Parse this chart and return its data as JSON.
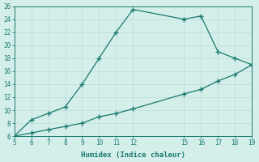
{
  "xlabel": "Humidex (Indice chaleur)",
  "upper_x": [
    5,
    6,
    7,
    8,
    9,
    10,
    11,
    12,
    15,
    16,
    17,
    18,
    19
  ],
  "upper_y": [
    6.0,
    8.5,
    9.5,
    10.5,
    14.0,
    18.0,
    22.0,
    25.5,
    24.0,
    24.5,
    19.0,
    18.0,
    17.0
  ],
  "lower_x": [
    5,
    6,
    7,
    8,
    9,
    10,
    11,
    12,
    15,
    16,
    17,
    18,
    19
  ],
  "lower_y": [
    6.0,
    6.5,
    7.0,
    7.5,
    8.0,
    9.0,
    9.5,
    10.2,
    12.5,
    13.2,
    14.5,
    15.5,
    17.0
  ],
  "line_color": "#1a7a6e",
  "marker": "+",
  "marker_size": 4,
  "bg_color": "#d4eeea",
  "grid_color": "#b8ddd8",
  "xlim": [
    5,
    19
  ],
  "ylim": [
    6,
    26
  ],
  "xticks": [
    5,
    6,
    7,
    8,
    9,
    10,
    11,
    12,
    15,
    16,
    17,
    18,
    19
  ],
  "yticks": [
    6,
    8,
    10,
    12,
    14,
    16,
    18,
    20,
    22,
    24,
    26
  ],
  "tick_fontsize": 5.5,
  "xlabel_fontsize": 6.5
}
